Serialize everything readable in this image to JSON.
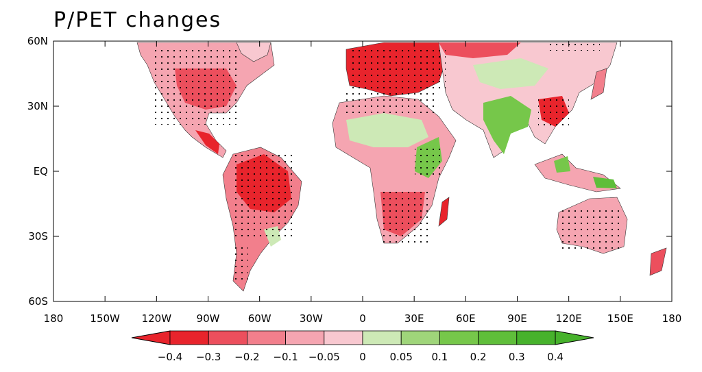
{
  "title": "P/PET changes",
  "map": {
    "lon_range": [
      -180,
      180
    ],
    "lat_range": [
      -60,
      60
    ],
    "lat_ticks": [
      "60N",
      "30N",
      "EQ",
      "30S",
      "60S"
    ],
    "lon_ticks": [
      "180",
      "150W",
      "120W",
      "90W",
      "60W",
      "30W",
      "0",
      "30E",
      "60E",
      "90E",
      "120E",
      "150E",
      "180"
    ],
    "ocean_color": "#ffffff",
    "stippling": "significant changes (dots)"
  },
  "colorbar": {
    "labels": [
      "−0.4",
      "−0.3",
      "−0.2",
      "−0.1",
      "−0.05",
      "0",
      "0.05",
      "0.1",
      "0.2",
      "0.3",
      "0.4"
    ],
    "colors": [
      "#e8242c",
      "#ec4f5d",
      "#f27f8c",
      "#f5a5b1",
      "#f8c8d0",
      "#cde9b6",
      "#9fd57a",
      "#76c74a",
      "#5fbe3a",
      "#47b22c"
    ],
    "low_extend_color": "#e8242c",
    "high_extend_color": "#47b22c"
  }
}
